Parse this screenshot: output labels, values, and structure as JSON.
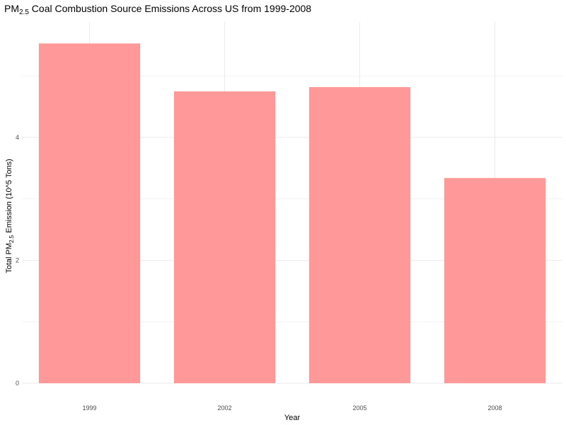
{
  "chart_data": {
    "type": "bar",
    "title": {
      "prefix": "PM",
      "subscript": "2.5",
      "suffix": " Coal Combustion Source Emissions Across US from 1999-2008"
    },
    "xlabel": "Year",
    "ylabel": {
      "prefix": "Total PM",
      "subscript": "2.5",
      "suffix": " Emission (10^5 Tons)"
    },
    "categories": [
      "1999",
      "2002",
      "2005",
      "2008"
    ],
    "values": [
      5.53,
      4.75,
      4.82,
      3.34
    ],
    "ylim": [
      0,
      5.88
    ],
    "yticks": [
      0,
      2,
      4
    ],
    "yminor": [
      1,
      3,
      5
    ],
    "grid": true,
    "legend": "none",
    "bar_color": "#ff9999"
  }
}
